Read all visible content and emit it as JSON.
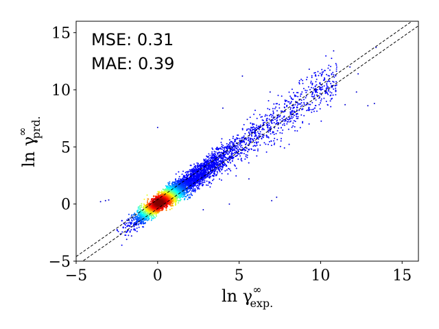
{
  "chart_data": {
    "type": "scatter",
    "title": "",
    "xlabel": {
      "base": "ln γ",
      "sup": "∞",
      "sub": "exp."
    },
    "ylabel": {
      "base": "ln γ",
      "sup": "∞",
      "sub": "prd."
    },
    "xlim": [
      -5,
      16
    ],
    "ylim": [
      -5,
      16
    ],
    "xticks": [
      -5,
      0,
      5,
      10,
      15
    ],
    "yticks": [
      -5,
      0,
      5,
      10,
      15
    ],
    "grid": false,
    "colormap": "jet (point density)",
    "marker_color_low": "#00008b",
    "marker_color_high": "#ff0000",
    "reference_lines": [
      {
        "style": "dashed",
        "color": "#000000",
        "slope": 1,
        "intercept": 0.4
      },
      {
        "style": "dashed",
        "color": "#000000",
        "slope": 1,
        "intercept": -0.4
      }
    ],
    "annotations": [
      {
        "text": "MSE: 0.31"
      },
      {
        "text": "MAE: 0.39"
      }
    ],
    "outliers": [
      [
        -3.5,
        0.2
      ],
      [
        -3.2,
        0.3
      ],
      [
        -3.0,
        0.35
      ],
      [
        -1.9,
        -3.1
      ],
      [
        -1.6,
        -2.8
      ],
      [
        0.0,
        6.7
      ],
      [
        4.0,
        8.4
      ],
      [
        5.2,
        11.2
      ],
      [
        10.8,
        13.4
      ],
      [
        13.4,
        13.7
      ],
      [
        11.8,
        12.0
      ],
      [
        12.3,
        11.4
      ],
      [
        12.2,
        9.8
      ],
      [
        13.3,
        8.8
      ],
      [
        12.9,
        8.6
      ],
      [
        11.5,
        8.7
      ],
      [
        7.0,
        0.3
      ],
      [
        7.3,
        0.6
      ],
      [
        4.4,
        0.0
      ],
      [
        2.8,
        -0.5
      ],
      [
        5.6,
        2.2
      ],
      [
        8.6,
        7.5
      ],
      [
        6.9,
        9.8
      ],
      [
        5.5,
        7.4
      ],
      [
        9.3,
        11.8
      ]
    ]
  }
}
